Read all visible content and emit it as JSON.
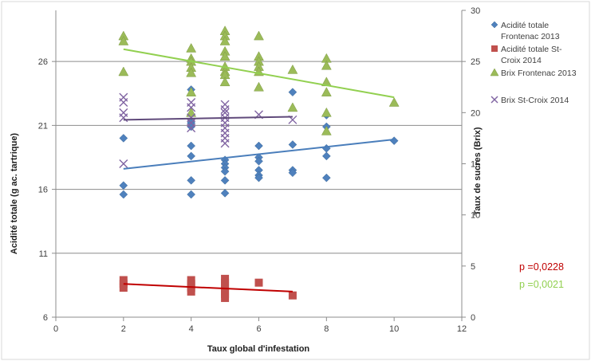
{
  "chart_data": {
    "type": "scatter",
    "xlabel": "Taux global d'infestation",
    "ylabel": "Acidité totale (g ac. tartrique)",
    "y2label": "Taux de sucres (Brix)",
    "xlim": [
      0,
      12
    ],
    "ylim": [
      6,
      30
    ],
    "y2lim": [
      0,
      30
    ],
    "x_ticks": [
      "0",
      "2",
      "4",
      "6",
      "8",
      "10",
      "12"
    ],
    "y_ticks": [
      "6",
      "11",
      "16",
      "21",
      "26"
    ],
    "y2_ticks": [
      "0",
      "5",
      "10",
      "15",
      "20",
      "25",
      "30"
    ],
    "grid": "horizontal",
    "legend_position": "right",
    "series": [
      {
        "name": "Acidité totale Frontenac 2013",
        "axis": "left",
        "marker": "diamond",
        "color": "#4f81bd",
        "points": [
          [
            2,
            20
          ],
          [
            2,
            16.3
          ],
          [
            2,
            15.6
          ],
          [
            4,
            23.8
          ],
          [
            4,
            21.2
          ],
          [
            4,
            20.9
          ],
          [
            4,
            19.4
          ],
          [
            4,
            18.6
          ],
          [
            4,
            16.7
          ],
          [
            4,
            15.6
          ],
          [
            5,
            18.3
          ],
          [
            5,
            18
          ],
          [
            5,
            17.7
          ],
          [
            5,
            17.4
          ],
          [
            5,
            16.7
          ],
          [
            5,
            15.7
          ],
          [
            6,
            19.4
          ],
          [
            6,
            18.5
          ],
          [
            6,
            18.2
          ],
          [
            6,
            17.5
          ],
          [
            6,
            17.1
          ],
          [
            6,
            16.9
          ],
          [
            7,
            23.6
          ],
          [
            7,
            19.5
          ],
          [
            7,
            17.5
          ],
          [
            7,
            17.3
          ],
          [
            8,
            21.8
          ],
          [
            8,
            20.9
          ],
          [
            8,
            19.2
          ],
          [
            8,
            18.6
          ],
          [
            8,
            16.9
          ],
          [
            10,
            19.8
          ]
        ],
        "trend": [
          [
            2,
            17.6
          ],
          [
            10,
            19.9
          ]
        ]
      },
      {
        "name": "Acidité totale St-Croix 2014",
        "axis": "left",
        "marker": "square",
        "color": "#c0504d",
        "points": [
          [
            2,
            8.9
          ],
          [
            2,
            8.6
          ],
          [
            2,
            8.3
          ],
          [
            4,
            8.9
          ],
          [
            4,
            8.6
          ],
          [
            4,
            8.3
          ],
          [
            4,
            8
          ],
          [
            5,
            9
          ],
          [
            5,
            8.7
          ],
          [
            5,
            8.4
          ],
          [
            5,
            8.1
          ],
          [
            5,
            7.8
          ],
          [
            5,
            7.5
          ],
          [
            6,
            8.7
          ],
          [
            7,
            7.7
          ]
        ],
        "trend": [
          [
            2,
            8.6
          ],
          [
            7,
            8
          ]
        ]
      },
      {
        "name": "Brix Frontenac 2013",
        "axis": "right",
        "marker": "triangle",
        "color": "#9bbb59",
        "points": [
          [
            2,
            27.5
          ],
          [
            2,
            27
          ],
          [
            2,
            24
          ],
          [
            4,
            26.3
          ],
          [
            4,
            25.3
          ],
          [
            4,
            25
          ],
          [
            4,
            24.4
          ],
          [
            4,
            23.9
          ],
          [
            4,
            22
          ],
          [
            4,
            20
          ],
          [
            5,
            28
          ],
          [
            5,
            27.5
          ],
          [
            5,
            27
          ],
          [
            5,
            26
          ],
          [
            5,
            25.5
          ],
          [
            5,
            24.5
          ],
          [
            5,
            24
          ],
          [
            5,
            23.7
          ],
          [
            5,
            23
          ],
          [
            6,
            27.5
          ],
          [
            6,
            25.5
          ],
          [
            6,
            25
          ],
          [
            6,
            24.5
          ],
          [
            6,
            24
          ],
          [
            6,
            22.5
          ],
          [
            7,
            24.2
          ],
          [
            7,
            20.5
          ],
          [
            8,
            25.3
          ],
          [
            8,
            24.6
          ],
          [
            8,
            23
          ],
          [
            8,
            22
          ],
          [
            8,
            20
          ],
          [
            8,
            18.2
          ],
          [
            10,
            21
          ]
        ],
        "trend": [
          [
            2,
            26.2
          ],
          [
            10,
            21.5
          ]
        ]
      },
      {
        "name": "Brix St-Croix 2014",
        "axis": "right",
        "marker": "x",
        "color": "#8064a2",
        "points": [
          [
            2,
            21.5
          ],
          [
            2,
            21
          ],
          [
            2,
            20
          ],
          [
            2,
            19.5
          ],
          [
            2,
            15
          ],
          [
            4,
            21
          ],
          [
            4,
            20.5
          ],
          [
            4,
            19.5
          ],
          [
            4,
            19
          ],
          [
            4,
            18.5
          ],
          [
            5,
            20.8
          ],
          [
            5,
            20.3
          ],
          [
            5,
            20
          ],
          [
            5,
            19.5
          ],
          [
            5,
            19
          ],
          [
            5,
            18.5
          ],
          [
            5,
            18
          ],
          [
            5,
            17.5
          ],
          [
            5,
            17
          ],
          [
            6,
            19.8
          ],
          [
            7,
            19.3
          ]
        ],
        "trend": [
          [
            2,
            19.3
          ],
          [
            7,
            19.6
          ]
        ]
      }
    ],
    "annotations": [
      {
        "text": "p =0,0228",
        "color": "#c00000"
      },
      {
        "text": "p =0,0021",
        "color": "#92d050"
      }
    ]
  }
}
